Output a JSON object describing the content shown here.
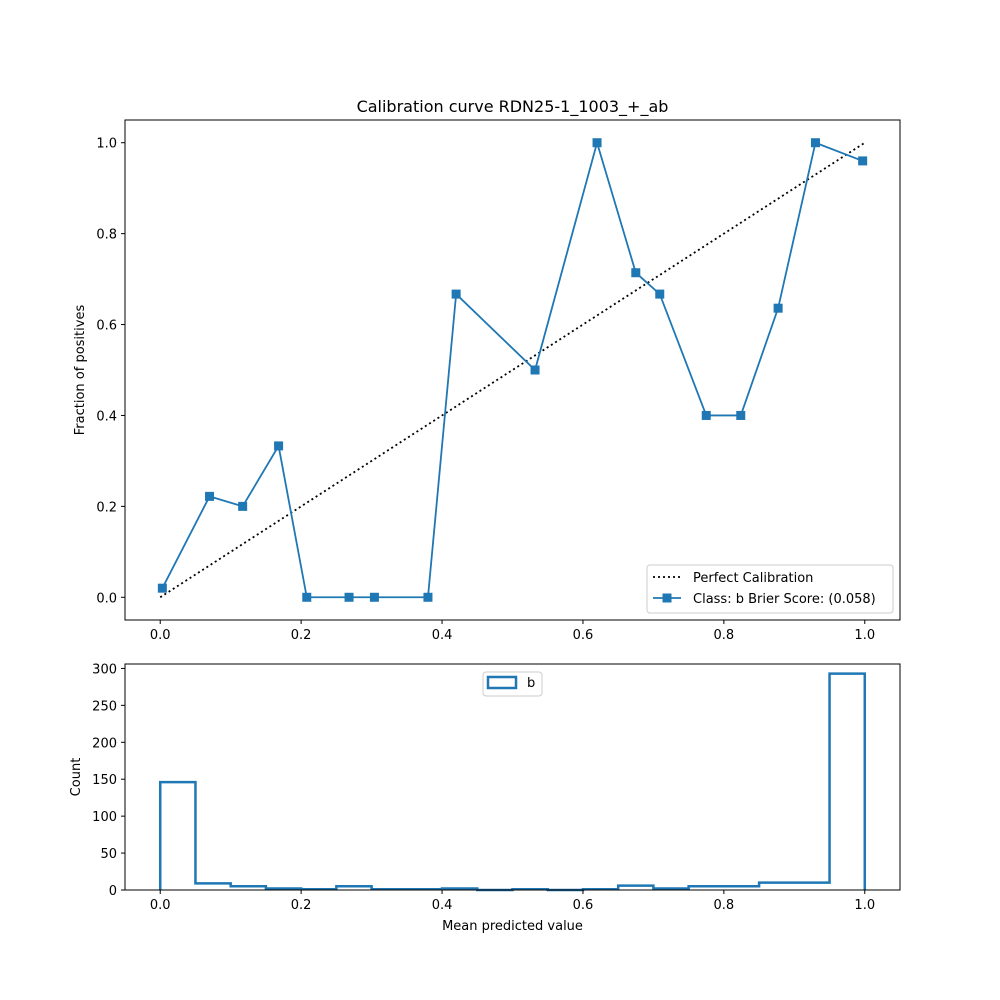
{
  "chart_data": [
    {
      "type": "line",
      "title": "Calibration curve RDN25-1_1003_+_ab",
      "xlabel": "",
      "ylabel": "Fraction of positives",
      "xlim": [
        -0.05,
        1.05
      ],
      "ylim": [
        -0.05,
        1.05
      ],
      "xticks": [
        "0.0",
        "0.2",
        "0.4",
        "0.6",
        "0.8",
        "1.0"
      ],
      "yticks": [
        "0.0",
        "0.2",
        "0.4",
        "0.6",
        "0.8",
        "1.0"
      ],
      "grid": false,
      "legend_position": "lower-right",
      "series": [
        {
          "name": "Perfect Calibration",
          "style": "dotted",
          "color": "#000000",
          "x": [
            0,
            1
          ],
          "y": [
            0,
            1
          ]
        },
        {
          "name": "Class: b Brier Score: (0.058)",
          "style": "solid-square-markers",
          "color": "#1f77b4",
          "x": [
            0.003,
            0.07,
            0.117,
            0.168,
            0.208,
            0.268,
            0.304,
            0.38,
            0.42,
            0.532,
            0.62,
            0.675,
            0.709,
            0.775,
            0.824,
            0.877,
            0.93,
            0.997
          ],
          "y": [
            0.02,
            0.222,
            0.2,
            0.333,
            0.0,
            0.0,
            0.0,
            0.0,
            0.667,
            0.5,
            1.0,
            0.714,
            0.667,
            0.4,
            0.4,
            0.636,
            1.0,
            0.96
          ]
        }
      ]
    },
    {
      "type": "bar",
      "title": "",
      "xlabel": "Mean predicted value",
      "ylabel": "Count",
      "xlim": [
        -0.05,
        1.05
      ],
      "ylim": [
        0,
        306
      ],
      "xticks": [
        "0.0",
        "0.2",
        "0.4",
        "0.6",
        "0.8",
        "1.0"
      ],
      "yticks": [
        "0",
        "50",
        "100",
        "150",
        "200",
        "250",
        "300"
      ],
      "grid": false,
      "legend_position": "upper-center",
      "histtype": "step",
      "series": [
        {
          "name": "b",
          "color": "#1f77b4",
          "bin_edges": [
            0,
            0.05,
            0.1,
            0.15,
            0.2,
            0.25,
            0.3,
            0.35,
            0.4,
            0.45,
            0.5,
            0.55,
            0.6,
            0.65,
            0.7,
            0.75,
            0.8,
            0.85,
            0.9,
            0.95,
            1.0
          ],
          "values": [
            146,
            9,
            5,
            2,
            1,
            5,
            1,
            1,
            2,
            0,
            1,
            0,
            1,
            6,
            2,
            5,
            5,
            10,
            10,
            293
          ]
        }
      ]
    }
  ]
}
